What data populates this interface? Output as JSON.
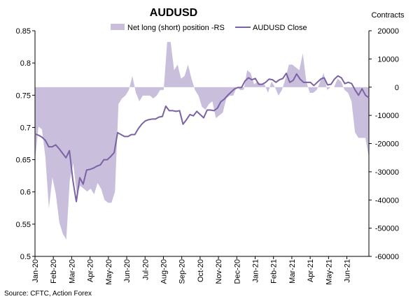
{
  "chart_data": {
    "type": "area+line",
    "title": "AUDUSD",
    "right_axis_title": "Contracts",
    "source": "Source: CFTC, Action Forex",
    "left_axis": {
      "min": 0.5,
      "max": 0.85,
      "step": 0.05,
      "tick_labels": [
        "0.85",
        "0.8",
        "0.75",
        "0.7",
        "0.65",
        "0.6",
        "0.55",
        "0.5"
      ]
    },
    "right_axis": {
      "min": -60000,
      "max": 20000,
      "step": 10000,
      "tick_labels": [
        "20000",
        "10000",
        "0",
        "-10000",
        "-20000",
        "-30000",
        "-40000",
        "-50000",
        "-60000"
      ]
    },
    "x_labels": [
      "Jan-20",
      "Feb-20",
      "Mar-20",
      "Apr-20",
      "May-20",
      "Jun-20",
      "Jul-20",
      "Aug-20",
      "Sep-20",
      "Oct-20",
      "Nov-20",
      "Dec-20",
      "Jan-21",
      "Feb-21",
      "Mar-21",
      "Apr-21",
      "May-21",
      "Jun-21"
    ],
    "series": [
      {
        "name": "Net long (short) position -RS",
        "type": "area",
        "axis": "right",
        "color": "#c9bfdc",
        "values": [
          -26000,
          -14000,
          -15000,
          -25000,
          -43000,
          -32000,
          -38000,
          -48000,
          -52000,
          -54000,
          -33000,
          -27000,
          -38000,
          -35000,
          -36000,
          -37000,
          -36000,
          -38000,
          -34000,
          -36000,
          -40000,
          -41000,
          -41000,
          -37000,
          -6000,
          -4000,
          -3000,
          -1000,
          4000,
          -2000,
          -5000,
          -3000,
          -3000,
          -3000,
          -4000,
          -3000,
          -1000,
          -1000,
          16000,
          16000,
          6000,
          8000,
          3000,
          4000,
          8000,
          3000,
          -1000,
          -3000,
          -7000,
          -8000,
          -6000,
          -5000,
          -11000,
          -10000,
          -9000,
          -4000,
          -3000,
          -3000,
          0,
          -1000,
          -1000,
          6000,
          5000,
          1000,
          2000,
          1000,
          1000,
          -2000,
          2000,
          0,
          -3000,
          -1000,
          3000,
          8000,
          8000,
          7000,
          6000,
          12000,
          2000,
          -2000,
          -2000,
          -1000,
          2000,
          5000,
          -1000,
          0,
          0,
          3000,
          2000,
          -1000,
          -2000,
          -5000,
          -16000,
          -18000,
          -18000,
          -18000,
          -25000
        ]
      },
      {
        "name": "AUDUSD Close",
        "type": "line",
        "axis": "left",
        "color": "#7b62a4",
        "values": [
          0.69,
          0.688,
          0.685,
          0.68,
          0.67,
          0.67,
          0.673,
          0.667,
          0.66,
          0.653,
          0.664,
          0.618,
          0.585,
          0.622,
          0.612,
          0.634,
          0.635,
          0.637,
          0.64,
          0.642,
          0.65,
          0.65,
          0.655,
          0.661,
          0.692,
          0.689,
          0.686,
          0.686,
          0.689,
          0.689,
          0.698,
          0.705,
          0.71,
          0.712,
          0.713,
          0.713,
          0.716,
          0.717,
          0.733,
          0.726,
          0.726,
          0.725,
          0.726,
          0.705,
          0.712,
          0.72,
          0.718,
          0.725,
          0.72,
          0.715,
          0.727,
          0.727,
          0.726,
          0.73,
          0.74,
          0.744,
          0.75,
          0.755,
          0.76,
          0.762,
          0.762,
          0.772,
          0.777,
          0.774,
          0.776,
          0.767,
          0.767,
          0.77,
          0.775,
          0.774,
          0.77,
          0.774,
          0.776,
          0.784,
          0.77,
          0.773,
          0.783,
          0.775,
          0.77,
          0.77,
          0.77,
          0.765,
          0.77,
          0.775,
          0.777,
          0.766,
          0.767,
          0.775,
          0.78,
          0.777,
          0.768,
          0.77,
          0.768,
          0.758,
          0.75,
          0.76,
          0.75,
          0.746
        ]
      }
    ],
    "grid": false,
    "legend_position": "top-center"
  }
}
